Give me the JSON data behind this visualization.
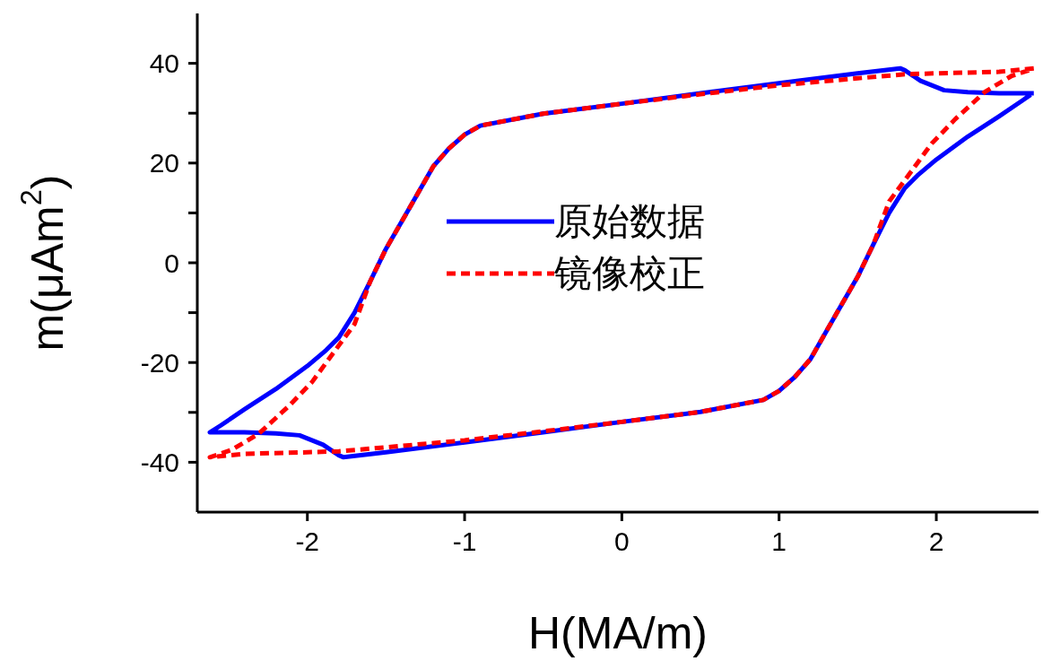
{
  "chart_data": {
    "type": "line",
    "xlabel": "H(MA/m)",
    "ylabel": "m(μAm$^{2}$)",
    "xlim": [
      -2.7,
      2.65
    ],
    "xticks": [
      -2,
      -1,
      0,
      1,
      2
    ],
    "ylim": [
      -50,
      50
    ],
    "yticks": [
      -40,
      {
        "value": -30,
        "label": null
      },
      -20,
      {
        "value": -10,
        "label": null
      },
      0,
      {
        "value": 10,
        "label": null
      },
      20,
      {
        "value": 30,
        "label": null
      },
      40
    ],
    "legend": "center",
    "grid": false,
    "marker": "none",
    "series": [
      {
        "name": "原始数据",
        "color": "#0000ff",
        "line_style": "solid",
        "x": [
          2.62,
          2.4,
          2.2,
          2.05,
          1.9,
          1.8,
          1.77,
          1.5,
          1.0,
          0.5,
          0.0,
          -0.5,
          -0.9,
          -1.0,
          -1.1,
          -1.2,
          -1.35,
          -1.5,
          -1.6,
          -1.7,
          -1.8,
          -1.88,
          -2.0,
          -2.2,
          -2.4,
          -2.55,
          -2.62,
          -2.4,
          -2.2,
          -2.05,
          -1.9,
          -1.8,
          -1.77,
          -1.5,
          -1.0,
          -0.5,
          0.0,
          0.5,
          0.9,
          1.0,
          1.1,
          1.2,
          1.35,
          1.5,
          1.6,
          1.7,
          1.8,
          1.88,
          2.0,
          2.2,
          2.4,
          2.55,
          2.6
        ],
        "values": [
          34,
          34,
          34.2,
          34.6,
          36.5,
          38.6,
          39,
          38,
          36,
          34,
          31.9,
          29.9,
          27.5,
          25.7,
          22.9,
          19.3,
          11,
          2.8,
          -3.7,
          -10,
          -15,
          -17.5,
          -20.7,
          -25.3,
          -29.4,
          -32.6,
          -34,
          -34,
          -34.2,
          -34.6,
          -36.5,
          -38.6,
          -39,
          -38,
          -36,
          -34,
          -31.9,
          -29.9,
          -27.5,
          -25.7,
          -22.9,
          -19.3,
          -11,
          -2.8,
          3.7,
          10,
          15,
          17.5,
          20.7,
          25.3,
          29.4,
          32.6,
          33.7
        ]
      },
      {
        "name": "镜像校正",
        "color": "#ff0000",
        "line_style": "dashed",
        "x": [
          2.62,
          2.4,
          2.0,
          1.8,
          1.5,
          1.0,
          0.5,
          0.0,
          -0.5,
          -0.9,
          -1.0,
          -1.1,
          -1.2,
          -1.35,
          -1.5,
          -1.6,
          -1.7,
          -1.84,
          -1.97,
          -2.12,
          -2.31,
          -2.48,
          -2.62,
          -2.4,
          -2.0,
          -1.8,
          -1.5,
          -1.0,
          -0.5,
          0.0,
          0.5,
          0.9,
          1.0,
          1.1,
          1.2,
          1.35,
          1.5,
          1.6,
          1.7,
          1.84,
          1.97,
          2.12,
          2.31,
          2.48,
          2.6
        ],
        "values": [
          39,
          38.3,
          38,
          37.8,
          37,
          35.6,
          33.8,
          31.9,
          29.9,
          27.5,
          25.7,
          22.9,
          19.3,
          11,
          2.8,
          -3.7,
          -12.3,
          -18.3,
          -23.9,
          -28.8,
          -34.3,
          -37.5,
          -39,
          -38.3,
          -38,
          -37.8,
          -37,
          -35.6,
          -33.8,
          -31.9,
          -29.9,
          -27.5,
          -25.7,
          -22.9,
          -19.3,
          -11,
          -2.8,
          3.7,
          12.3,
          18.3,
          23.9,
          28.8,
          34.3,
          37.5,
          38.7
        ]
      }
    ]
  }
}
